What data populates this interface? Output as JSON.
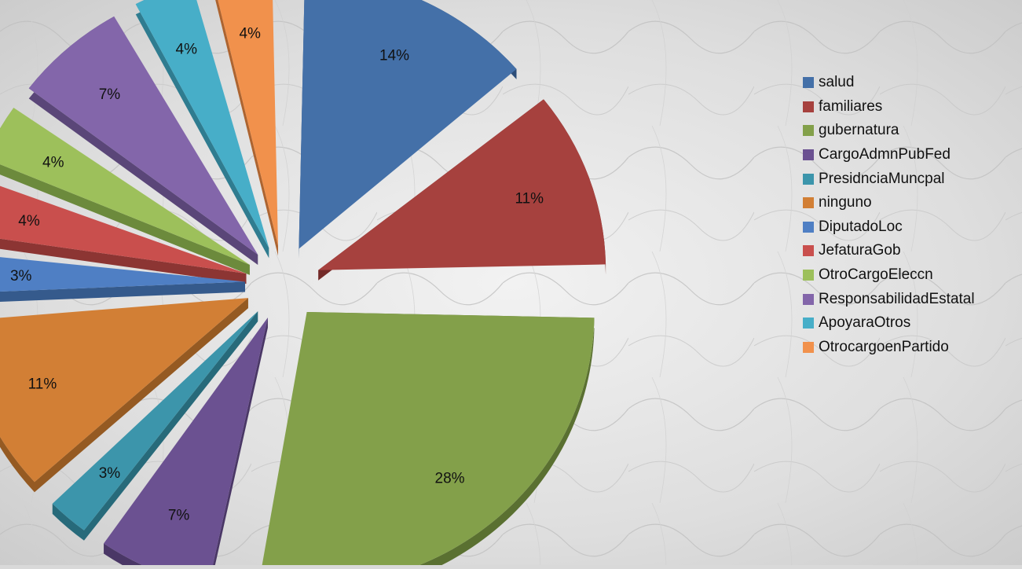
{
  "chart_data": {
    "type": "pie",
    "style": "3d-exploded",
    "legend_position": "right",
    "categories": [
      "salud",
      "familiares",
      "gubernatura",
      "CargoAdmnPubFed",
      "PresidnciaMuncpal",
      "ninguno",
      "DiputadoLoc",
      "JefaturaGob",
      "OtroCargoEleccn",
      "ResponsabilidadEstatal",
      "ApoyaraOtros",
      "OtrocargoenPartido"
    ],
    "values": [
      14,
      11,
      28,
      7,
      3,
      11,
      3,
      4,
      4,
      7,
      4,
      4
    ],
    "labels": [
      "14%",
      "11%",
      "28%",
      "7%",
      "3%",
      "11%",
      "3%",
      "4%",
      "4%",
      "7%",
      "4%",
      "4%"
    ],
    "colors": [
      "#4470a8",
      "#a6413e",
      "#83a04a",
      "#6b5191",
      "#3c95ab",
      "#d27f35",
      "#4f7fc4",
      "#c94f4d",
      "#9dc05b",
      "#8366aa",
      "#47aec8",
      "#f1914c"
    ],
    "side_colors": [
      "#2c4d78",
      "#732a28",
      "#5a7031",
      "#4a3766",
      "#276a7a",
      "#955a22",
      "#355a8c",
      "#8c3533",
      "#6c8a3c",
      "#5a4678",
      "#2f7c90",
      "#ad6430"
    ]
  }
}
